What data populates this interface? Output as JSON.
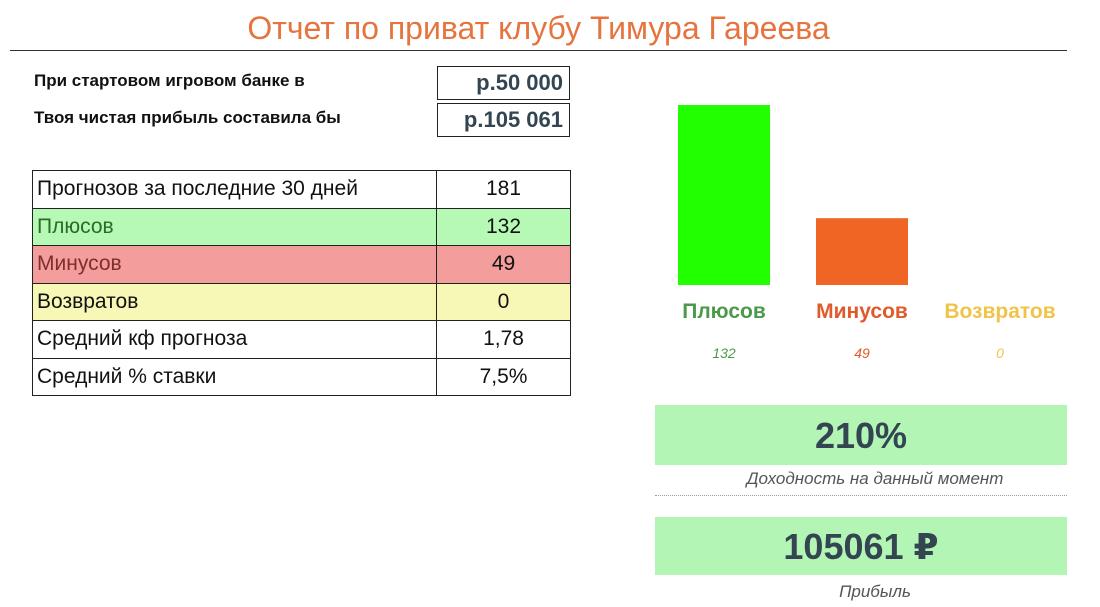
{
  "title": "Отчет по приват клубу  Тимура Гареева",
  "bank": {
    "start_label": "При стартовом игровом банке в",
    "start_value": "р.50 000",
    "profit_label": "Твоя чистая прибыль составила бы",
    "profit_value": "р.105 061"
  },
  "stats": [
    {
      "label": "Прогнозов за последние 30 дней",
      "value": "181"
    },
    {
      "label": "Плюсов",
      "value": "132"
    },
    {
      "label": "Минусов",
      "value": "49"
    },
    {
      "label": "Возвратов",
      "value": "0"
    },
    {
      "label": "Средний кф прогноза",
      "value": "1,78"
    },
    {
      "label": "Средний % ставки",
      "value": "7,5%"
    }
  ],
  "colors": {
    "plus": "#22ff00",
    "minus": "#f06424",
    "returns": "#f5c242",
    "plus_label": "#4a9a4a",
    "minus_label": "#e05a2a",
    "returns_label": "#f0c44a",
    "title": "#e5743f"
  },
  "chart_data": {
    "type": "bar",
    "categories": [
      "Плюсов",
      "Минусов",
      "Возвратов"
    ],
    "values": [
      132,
      49,
      0
    ],
    "value_labels": [
      "132",
      "49",
      "0"
    ],
    "ylim": [
      0,
      132
    ],
    "grid": false,
    "legend": "none"
  },
  "kpi": {
    "yield_value": "210%",
    "yield_caption": "Доходность на данный момент",
    "profit_value": "105061 ₽",
    "profit_caption": "Прибыль"
  }
}
